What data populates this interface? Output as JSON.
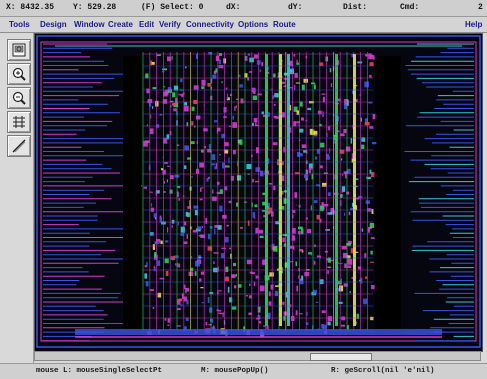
{
  "coords": {
    "x": "X: 8432.35",
    "y": "Y: 529.28",
    "select": "(F) Select: 0",
    "dx": "dX:",
    "dy": "dY:",
    "dist": "Dist:",
    "cmd": "Cmd:",
    "corner": "2"
  },
  "menu": {
    "items": [
      "Tools",
      "Design",
      "Window",
      "Create",
      "Edit",
      "Verify",
      "Connectivity",
      "Options",
      "Route"
    ],
    "help": "Help"
  },
  "toolbar": {
    "icons": [
      "window-icon",
      "zoom-in-icon",
      "zoom-out-icon",
      "grid-icon",
      "ruler-icon"
    ]
  },
  "status": {
    "left": "mouse L: mouseSingleSelectPt",
    "middle": "M: mousePopUp()",
    "right": "R: geScroll(nil 'e'nil)"
  },
  "colors": {
    "canvas": "#05060f",
    "magenta": "#d23cd0",
    "blue": "#3a55e6",
    "green": "#2fcf5a",
    "yellow": "#e8e24a",
    "cyan": "#37c9d8",
    "red": "#e5454a"
  }
}
